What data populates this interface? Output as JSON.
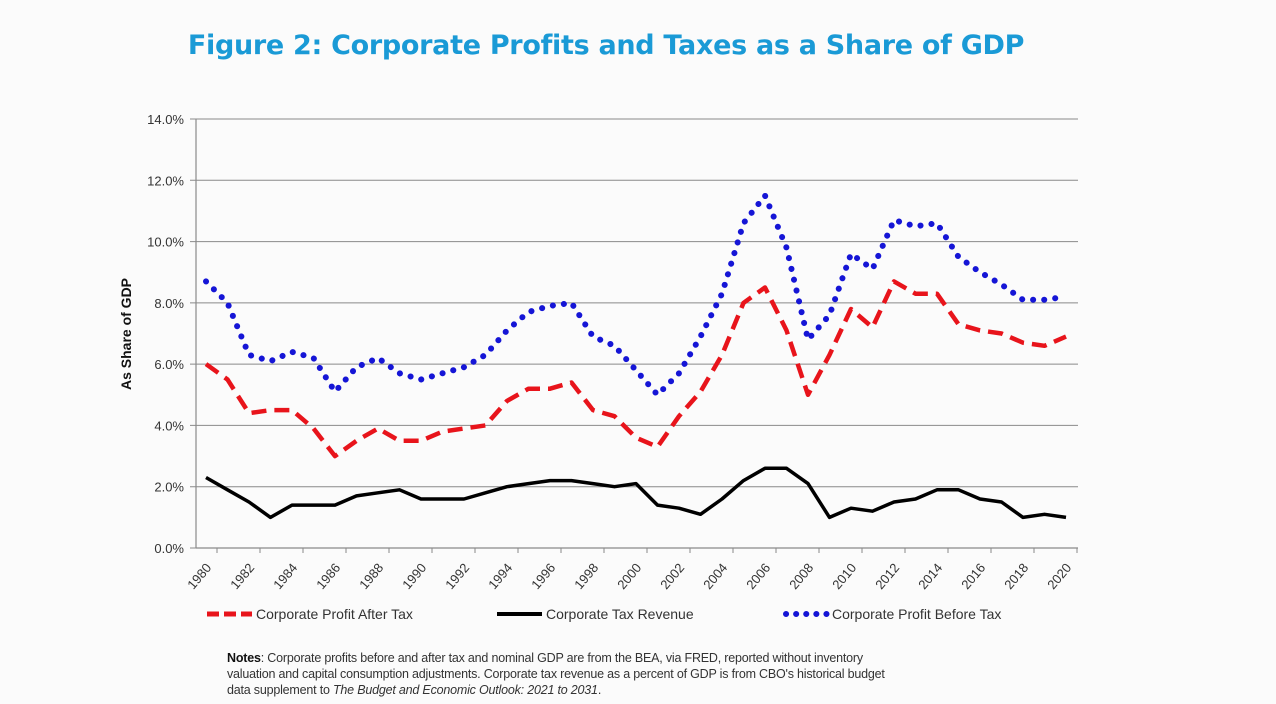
{
  "chart_data": {
    "type": "line",
    "title": "Figure 2: Corporate Profits and Taxes as a Share of GDP",
    "xlabel": "",
    "ylabel": "As Share of GDP",
    "ylim": [
      0,
      14
    ],
    "yticks": [
      "0.0%",
      "2.0%",
      "4.0%",
      "6.0%",
      "8.0%",
      "10.0%",
      "12.0%",
      "14.0%"
    ],
    "ytick_values": [
      0,
      2,
      4,
      6,
      8,
      10,
      12,
      14
    ],
    "xticks": [
      "1980",
      "1982",
      "1984",
      "1986",
      "1988",
      "1990",
      "1992",
      "1994",
      "1996",
      "1998",
      "2000",
      "2002",
      "2004",
      "2006",
      "2008",
      "2010",
      "2012",
      "2014",
      "2016",
      "2018",
      "2020"
    ],
    "xlim": [
      1980,
      2020
    ],
    "grid": true,
    "legend_position": "bottom",
    "x": [
      1980,
      1981,
      1982,
      1983,
      1984,
      1985,
      1986,
      1987,
      1988,
      1989,
      1990,
      1991,
      1992,
      1993,
      1994,
      1995,
      1996,
      1997,
      1998,
      1999,
      2000,
      2001,
      2002,
      2003,
      2004,
      2005,
      2006,
      2007,
      2008,
      2009,
      2010,
      2011,
      2012,
      2013,
      2014,
      2015,
      2016,
      2017,
      2018,
      2019,
      2020
    ],
    "series": [
      {
        "name": "Corporate Profit After Tax",
        "color": "#e8141b",
        "style": "dashed",
        "values": [
          6.0,
          5.5,
          4.4,
          4.5,
          4.5,
          3.9,
          3.0,
          3.5,
          3.9,
          3.5,
          3.5,
          3.8,
          3.9,
          4.0,
          4.8,
          5.2,
          5.2,
          5.4,
          4.5,
          4.3,
          3.6,
          3.3,
          4.3,
          5.1,
          6.3,
          8.0,
          8.5,
          7.1,
          5.0,
          6.3,
          7.8,
          7.2,
          8.7,
          8.3,
          8.3,
          7.3,
          7.1,
          7.0,
          6.7,
          6.6,
          6.9
        ]
      },
      {
        "name": "Corporate Tax Revenue",
        "color": "#000000",
        "style": "solid",
        "values": [
          2.3,
          1.9,
          1.5,
          1.0,
          1.4,
          1.4,
          1.4,
          1.7,
          1.8,
          1.9,
          1.6,
          1.6,
          1.6,
          1.8,
          2.0,
          2.1,
          2.2,
          2.2,
          2.1,
          2.0,
          2.1,
          1.4,
          1.3,
          1.1,
          1.6,
          2.2,
          2.6,
          2.6,
          2.1,
          1.0,
          1.3,
          1.2,
          1.5,
          1.6,
          1.9,
          1.9,
          1.6,
          1.5,
          1.0,
          1.1,
          1.0
        ]
      },
      {
        "name": "Corporate Profit Before Tax",
        "color": "#1515d6",
        "style": "dotted",
        "values": [
          8.7,
          8.0,
          6.3,
          6.1,
          6.4,
          6.2,
          5.1,
          5.9,
          6.2,
          5.7,
          5.5,
          5.7,
          5.9,
          6.3,
          7.1,
          7.7,
          7.9,
          8.0,
          6.9,
          6.6,
          5.8,
          5.0,
          5.7,
          6.9,
          8.3,
          10.6,
          11.5,
          9.8,
          6.8,
          7.6,
          9.6,
          9.1,
          10.7,
          10.5,
          10.6,
          9.5,
          9.0,
          8.6,
          8.1,
          8.1,
          8.2
        ]
      }
    ]
  },
  "notes": {
    "label": "Notes",
    "line1": ": Corporate profits before and after tax and nominal GDP are from the BEA, via FRED, reported without inventory",
    "line2": "valuation and capital consumption adjustments. Corporate tax revenue as a percent of GDP is from CBO's historical budget",
    "line3_prefix": "data supplement to ",
    "line3_italic": "The Budget and Economic Outlook: 2021 to 2031",
    "line3_suffix": "."
  }
}
